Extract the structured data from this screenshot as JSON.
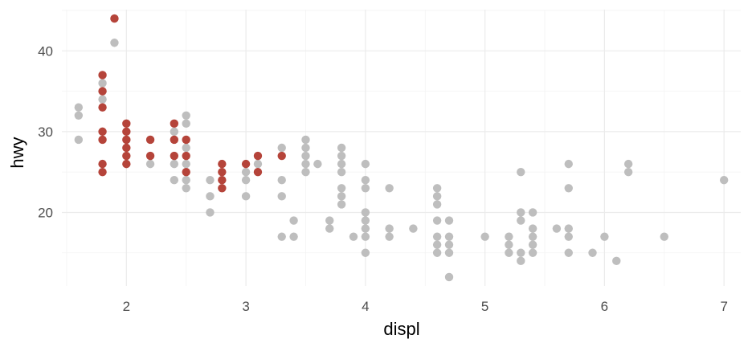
{
  "chart_data": {
    "type": "scatter",
    "xlabel": "displ",
    "ylabel": "hwy",
    "xlim": [
      1.46,
      7.14
    ],
    "ylim": [
      10.9,
      45.1
    ],
    "x_ticks": [
      2,
      3,
      4,
      5,
      6,
      7
    ],
    "y_ticks": [
      20,
      30,
      40
    ],
    "x_ticks_labels": [
      "2",
      "3",
      "4",
      "5",
      "6",
      "7"
    ],
    "y_ticks_labels": [
      "20",
      "30",
      "40"
    ],
    "grid": true,
    "colors": {
      "gray": "#bebebe",
      "highlight": "#b5443a"
    },
    "series": [
      {
        "color": "gray",
        "points": [
          [
            1.6,
            33
          ],
          [
            1.6,
            32
          ],
          [
            1.6,
            29
          ],
          [
            1.8,
            36
          ],
          [
            1.8,
            34
          ],
          [
            1.9,
            41
          ],
          [
            2.2,
            26
          ],
          [
            2.4,
            30
          ],
          [
            2.4,
            26
          ],
          [
            2.4,
            24
          ],
          [
            2.5,
            32
          ],
          [
            2.5,
            31
          ],
          [
            2.5,
            28
          ],
          [
            2.5,
            26
          ],
          [
            2.5,
            24
          ],
          [
            2.5,
            23
          ],
          [
            2.7,
            24
          ],
          [
            2.7,
            22
          ],
          [
            2.7,
            20
          ],
          [
            3.0,
            25
          ],
          [
            3.0,
            24
          ],
          [
            3.0,
            22
          ],
          [
            3.1,
            26
          ],
          [
            3.3,
            28
          ],
          [
            3.3,
            24
          ],
          [
            3.3,
            22
          ],
          [
            3.3,
            17
          ],
          [
            3.4,
            19
          ],
          [
            3.4,
            17
          ],
          [
            3.5,
            29
          ],
          [
            3.5,
            28
          ],
          [
            3.5,
            27
          ],
          [
            3.5,
            26
          ],
          [
            3.5,
            25
          ],
          [
            3.6,
            26
          ],
          [
            3.7,
            19
          ],
          [
            3.7,
            18
          ],
          [
            3.8,
            28
          ],
          [
            3.8,
            27
          ],
          [
            3.8,
            26
          ],
          [
            3.8,
            25
          ],
          [
            3.8,
            23
          ],
          [
            3.8,
            22
          ],
          [
            3.8,
            21
          ],
          [
            3.9,
            17
          ],
          [
            4.0,
            26
          ],
          [
            4.0,
            24
          ],
          [
            4.0,
            23
          ],
          [
            4.0,
            20
          ],
          [
            4.0,
            19
          ],
          [
            4.0,
            18
          ],
          [
            4.0,
            17
          ],
          [
            4.0,
            15
          ],
          [
            4.2,
            23
          ],
          [
            4.2,
            18
          ],
          [
            4.2,
            17
          ],
          [
            4.4,
            18
          ],
          [
            4.6,
            23
          ],
          [
            4.6,
            22
          ],
          [
            4.6,
            21
          ],
          [
            4.6,
            19
          ],
          [
            4.6,
            17
          ],
          [
            4.6,
            16
          ],
          [
            4.6,
            15
          ],
          [
            4.7,
            19
          ],
          [
            4.7,
            17
          ],
          [
            4.7,
            16
          ],
          [
            4.7,
            15
          ],
          [
            4.7,
            12
          ],
          [
            5.0,
            17
          ],
          [
            5.2,
            17
          ],
          [
            5.2,
            16
          ],
          [
            5.2,
            15
          ],
          [
            5.3,
            25
          ],
          [
            5.3,
            20
          ],
          [
            5.3,
            19
          ],
          [
            5.3,
            15
          ],
          [
            5.3,
            14
          ],
          [
            5.4,
            20
          ],
          [
            5.4,
            18
          ],
          [
            5.4,
            17
          ],
          [
            5.4,
            16
          ],
          [
            5.4,
            15
          ],
          [
            5.6,
            18
          ],
          [
            5.7,
            26
          ],
          [
            5.7,
            23
          ],
          [
            5.7,
            18
          ],
          [
            5.7,
            17
          ],
          [
            5.7,
            15
          ],
          [
            5.9,
            15
          ],
          [
            6.0,
            17
          ],
          [
            6.1,
            14
          ],
          [
            6.2,
            26
          ],
          [
            6.2,
            25
          ],
          [
            6.5,
            17
          ],
          [
            7.0,
            24
          ]
        ]
      },
      {
        "color": "highlight",
        "points": [
          [
            1.8,
            37
          ],
          [
            1.8,
            35
          ],
          [
            1.8,
            33
          ],
          [
            1.8,
            30
          ],
          [
            1.8,
            29
          ],
          [
            1.8,
            26
          ],
          [
            1.8,
            25
          ],
          [
            1.9,
            44
          ],
          [
            2.0,
            31
          ],
          [
            2.0,
            30
          ],
          [
            2.0,
            29
          ],
          [
            2.0,
            28
          ],
          [
            2.0,
            27
          ],
          [
            2.0,
            26
          ],
          [
            2.2,
            29
          ],
          [
            2.2,
            27
          ],
          [
            2.4,
            31
          ],
          [
            2.4,
            29
          ],
          [
            2.4,
            27
          ],
          [
            2.5,
            29
          ],
          [
            2.5,
            27
          ],
          [
            2.5,
            25
          ],
          [
            2.8,
            26
          ],
          [
            2.8,
            25
          ],
          [
            2.8,
            24
          ],
          [
            2.8,
            23
          ],
          [
            3.0,
            26
          ],
          [
            3.1,
            27
          ],
          [
            3.1,
            25
          ],
          [
            3.3,
            27
          ]
        ]
      }
    ]
  }
}
